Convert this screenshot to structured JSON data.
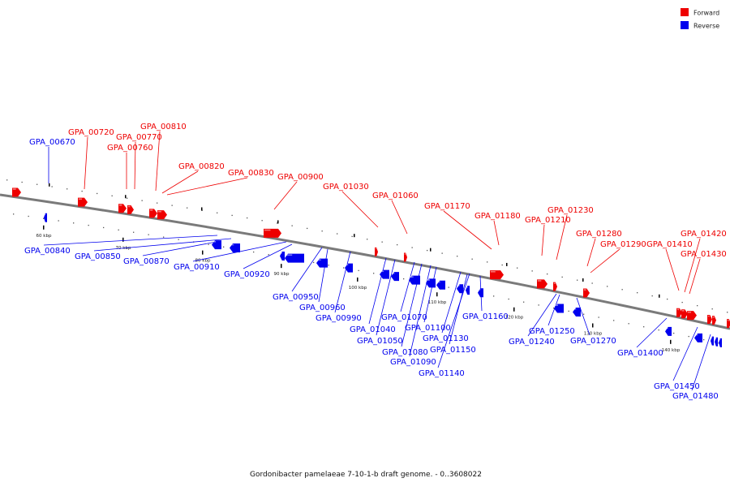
{
  "caption": "Gordonibacter pamelaeae 7-10-1-b draft genome. - 0..3608022",
  "legend": [
    {
      "label": "Forward",
      "color": "#ee0000"
    },
    {
      "label": "Reverse",
      "color": "#0000ee"
    }
  ],
  "colors": {
    "forward": "#ee0000",
    "reverse": "#0000ee",
    "axis": "#7a7a7a"
  },
  "ticks": [
    "60 kbp",
    "70 kbp",
    "80 kbp",
    "90 kbp",
    "100 kbp",
    "110 kbp",
    "120 kbp",
    "130 kbp",
    "140 kbp"
  ],
  "forward_genes": [
    "GPA_00720",
    "GPA_00770",
    "GPA_00760",
    "GPA_00810",
    "GPA_00820",
    "GPA_00830",
    "GPA_00900",
    "GPA_01030",
    "GPA_01060",
    "GPA_01170",
    "GPA_01180",
    "GPA_01210",
    "GPA_01230",
    "GPA_01280",
    "GPA_01290",
    "GPA_01410",
    "GPA_01420",
    "GPA_01430"
  ],
  "reverse_genes": [
    "GPA_00670",
    "GPA_00840",
    "GPA_00850",
    "GPA_00870",
    "GPA_00910",
    "GPA_00920",
    "GPA_00950",
    "GPA_00960",
    "GPA_00990",
    "GPA_01040",
    "GPA_01050",
    "GPA_01070",
    "GPA_01080",
    "GPA_01090",
    "GPA_01100",
    "GPA_01130",
    "GPA_01140",
    "GPA_01150",
    "GPA_01160",
    "GPA_01240",
    "GPA_01250",
    "GPA_01270",
    "GPA_01400",
    "GPA_01450",
    "GPA_01480"
  ]
}
